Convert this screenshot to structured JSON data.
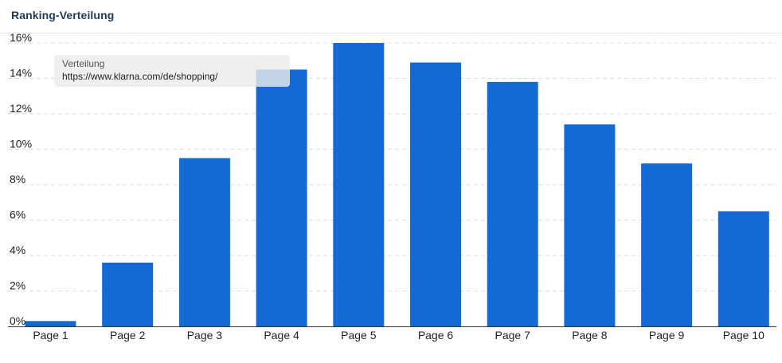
{
  "header": {
    "title": "Ranking-Verteilung"
  },
  "colors": {
    "bar": "#1569d4",
    "grid": "#dddddd",
    "axis": "#333333",
    "title": "#1e3a5c"
  },
  "tooltip": {
    "label": "Verteilung",
    "value": "https://www.klarna.com/de/shopping/"
  },
  "chart_data": {
    "type": "bar",
    "title": "Ranking-Verteilung",
    "xlabel": "",
    "ylabel": "",
    "categories": [
      "Page 1",
      "Page 2",
      "Page 3",
      "Page 4",
      "Page 5",
      "Page 6",
      "Page 7",
      "Page 8",
      "Page 9",
      "Page 10"
    ],
    "series": [
      {
        "name": "Verteilung",
        "values": [
          0.3,
          3.6,
          9.5,
          14.5,
          16.0,
          14.9,
          13.8,
          11.4,
          9.2,
          6.5
        ]
      }
    ],
    "ylim": [
      0,
      16
    ],
    "yticks": [
      0,
      2,
      4,
      6,
      8,
      10,
      12,
      14,
      16
    ],
    "ytick_labels": [
      "0%",
      "2%",
      "4%",
      "6%",
      "8%",
      "10%",
      "12%",
      "14%",
      "16%"
    ],
    "grid": true,
    "legend": "none"
  }
}
